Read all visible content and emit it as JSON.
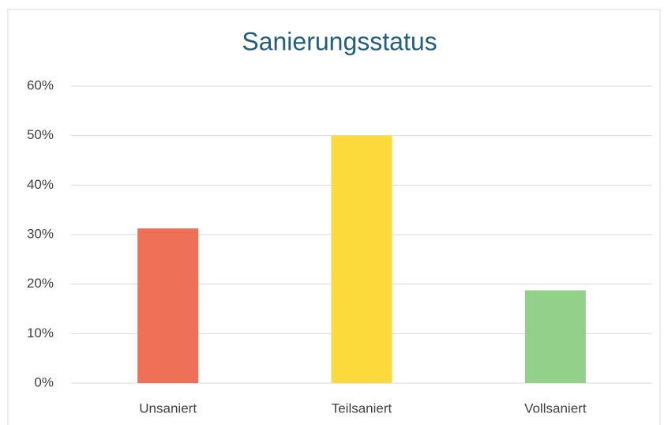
{
  "chart_data": {
    "type": "bar",
    "title": "Sanierungsstatus",
    "categories": [
      "Unsaniert",
      "Teilsaniert",
      "Vollsaniert"
    ],
    "values": [
      31.25,
      50,
      18.75
    ],
    "colors": [
      "#ed7057",
      "#fdda3c",
      "#93d18a"
    ],
    "ylim": [
      0,
      60
    ],
    "yticks": [
      {
        "value": 0,
        "label": "0%"
      },
      {
        "value": 10,
        "label": "10%"
      },
      {
        "value": 20,
        "label": "20%"
      },
      {
        "value": 30,
        "label": "30%"
      },
      {
        "value": 40,
        "label": "40%"
      },
      {
        "value": 50,
        "label": "50%"
      },
      {
        "value": 60,
        "label": "60%"
      }
    ],
    "grid": true
  }
}
